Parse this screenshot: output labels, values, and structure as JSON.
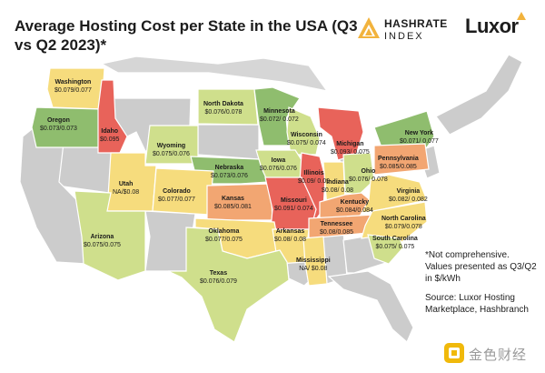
{
  "title": "Average Hosting Cost per State in the USA (Q3 vs Q2 2023)*",
  "brands": {
    "hashrate_line1": "HASHRATE",
    "hashrate_line2": "INDEX",
    "luxor": "Luxor",
    "watermark": "金色财经"
  },
  "notes": {
    "disclaimer": "*Not comprehensive. Values presented as Q3/Q2 in $/kWh",
    "source": "Source: Luxor Hosting Marketplace, Hashbranch"
  },
  "colors": {
    "no_data": "#cccccc",
    "green": "#8fbd6e",
    "light_green": "#cfdf8c",
    "yellow": "#f6dc7d",
    "orange": "#f2a672",
    "red": "#e8635a",
    "brand_gold": "#f0b90b"
  },
  "states": [
    {
      "name": "Washington",
      "value": "$0.079/0.077",
      "tier": "yellow"
    },
    {
      "name": "Oregon",
      "value": "$0.073/0.073",
      "tier": "green"
    },
    {
      "name": "Idaho",
      "value": "$0.095",
      "tier": "red"
    },
    {
      "name": "North Dakota",
      "value": "$0.076/0.078",
      "tier": "light_green"
    },
    {
      "name": "Minnesota",
      "value": "$0.072/ 0.072",
      "tier": "green"
    },
    {
      "name": "Wyoming",
      "value": "$0.075/0.076",
      "tier": "light_green"
    },
    {
      "name": "Wisconsin",
      "value": "$0.075/ 0.074",
      "tier": "light_green"
    },
    {
      "name": "Michigan",
      "value": "$0.093/ 0.075",
      "tier": "red"
    },
    {
      "name": "New York",
      "value": "$0.071/ 0.077",
      "tier": "green"
    },
    {
      "name": "Nebraska",
      "value": "$0.073/0.076",
      "tier": "green"
    },
    {
      "name": "Iowa",
      "value": "$0.076/0.076",
      "tier": "light_green"
    },
    {
      "name": "Utah",
      "value": "NA/$0.08",
      "tier": "yellow"
    },
    {
      "name": "Colorado",
      "value": "$0.077/0.077",
      "tier": "yellow"
    },
    {
      "name": "Illinois",
      "value": "$0.09/ 0.09",
      "tier": "red"
    },
    {
      "name": "Indiana",
      "value": "$0.08/ 0.08",
      "tier": "yellow"
    },
    {
      "name": "Ohio",
      "value": "$0.076/ 0.078",
      "tier": "light_green"
    },
    {
      "name": "Pennsylvania",
      "value": "$0.085/0.085",
      "tier": "orange"
    },
    {
      "name": "Kansas",
      "value": "$0.085/0.081",
      "tier": "orange"
    },
    {
      "name": "Missouri",
      "value": "$0.091/ 0.074",
      "tier": "red"
    },
    {
      "name": "Kentucky",
      "value": "$0.084/0.084",
      "tier": "orange"
    },
    {
      "name": "Virginia",
      "value": "$0.082/ 0.082",
      "tier": "yellow"
    },
    {
      "name": "Oklahoma",
      "value": "$0.077/0.075",
      "tier": "yellow"
    },
    {
      "name": "Arkansas",
      "value": "$0.08/ 0.08",
      "tier": "yellow"
    },
    {
      "name": "Tennessee",
      "value": "$0.08/0.085",
      "tier": "orange"
    },
    {
      "name": "North Carolina",
      "value": "$0.079/0.078",
      "tier": "yellow"
    },
    {
      "name": "Arizona",
      "value": "$0.075/0.075",
      "tier": "light_green"
    },
    {
      "name": "South Carolina",
      "value": "$0.075/ 0.075",
      "tier": "light_green"
    },
    {
      "name": "Mississippi",
      "value": "NA/ $0.08",
      "tier": "yellow"
    },
    {
      "name": "Texas",
      "value": "$0.076/0.079",
      "tier": "light_green"
    }
  ]
}
